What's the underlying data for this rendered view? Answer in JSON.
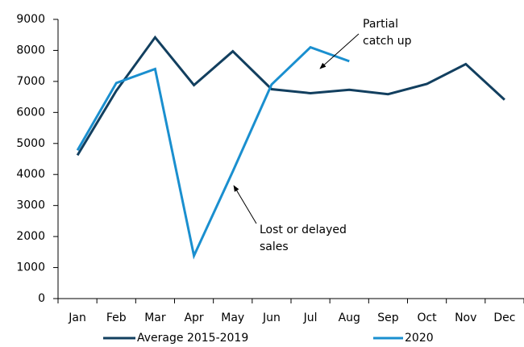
{
  "chart_data": {
    "type": "line",
    "categories": [
      "Jan",
      "Feb",
      "Mar",
      "Apr",
      "May",
      "Jun",
      "Jul",
      "Aug",
      "Sep",
      "Oct",
      "Nov",
      "Dec"
    ],
    "series": [
      {
        "name": "Average 2015-2019",
        "color": "#123f5f",
        "values": [
          4620,
          6700,
          8420,
          6880,
          7970,
          6750,
          6620,
          6730,
          6590,
          6920,
          7560,
          6410
        ]
      },
      {
        "name": "2020",
        "color": "#1a8fcf",
        "values": [
          4780,
          6950,
          7400,
          1380,
          4100,
          6900,
          8100,
          7650,
          null,
          null,
          null,
          null
        ]
      }
    ],
    "ylim": [
      0,
      9000
    ],
    "yticks": [
      0,
      1000,
      2000,
      3000,
      4000,
      5000,
      6000,
      7000,
      8000,
      9000
    ],
    "grid": false,
    "legend": "bottom",
    "annotations": [
      {
        "lines": [
          "Partial",
          "catch up"
        ]
      },
      {
        "lines": [
          "Lost or delayed",
          "sales"
        ]
      }
    ]
  }
}
